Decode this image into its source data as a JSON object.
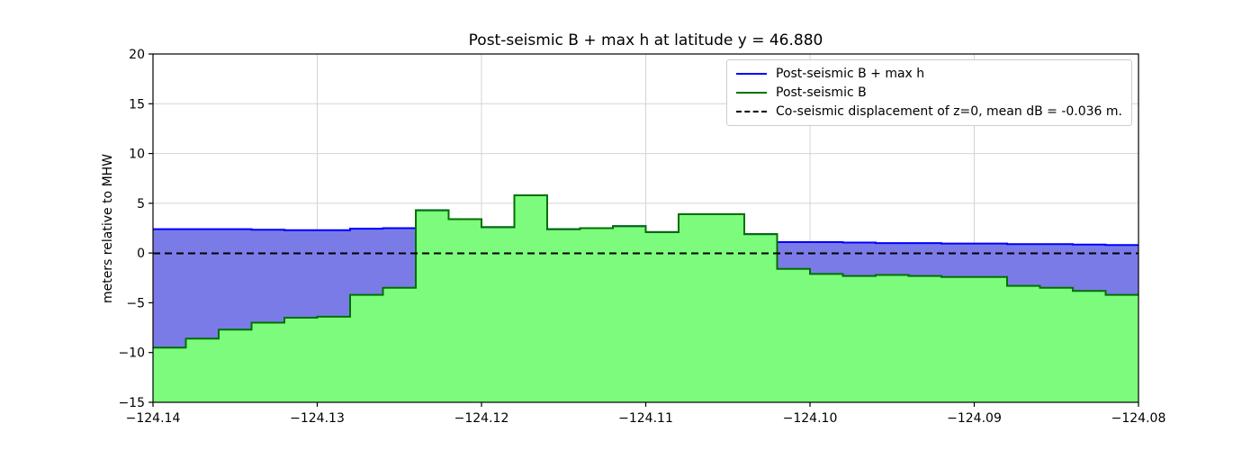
{
  "chart_data": {
    "type": "area",
    "title": "Post-seismic B + max h at latitude y = 46.880",
    "ylabel": "meters relative to MHW",
    "xlabel": "",
    "xlim": [
      -124.14,
      -124.08
    ],
    "ylim": [
      -15,
      20
    ],
    "x_ticks": [
      -124.14,
      -124.13,
      -124.12,
      -124.11,
      -124.1,
      -124.09,
      -124.08
    ],
    "y_ticks": [
      -15,
      -10,
      -5,
      0,
      5,
      10,
      15,
      20
    ],
    "grid": true,
    "legend_position": "upper right",
    "colors": {
      "grid": "#d4d4d4",
      "spine": "#000000",
      "background": "#ffffff"
    },
    "x_edges": [
      -124.14,
      -124.138,
      -124.136,
      -124.134,
      -124.132,
      -124.13,
      -124.128,
      -124.126,
      -124.124,
      -124.122,
      -124.12,
      -124.118,
      -124.116,
      -124.114,
      -124.112,
      -124.11,
      -124.108,
      -124.106,
      -124.104,
      -124.102,
      -124.1,
      -124.098,
      -124.096,
      -124.094,
      -124.092,
      -124.09,
      -124.088,
      -124.086,
      -124.084,
      -124.082,
      -124.08
    ],
    "series": [
      {
        "name": "Post-seismic B + max h",
        "color": "#0000ff",
        "fill": "#7b7be8",
        "values": [
          2.4,
          2.4,
          2.4,
          2.35,
          2.3,
          2.3,
          2.45,
          2.5,
          4.3,
          3.4,
          2.6,
          5.8,
          2.4,
          2.5,
          2.7,
          2.1,
          3.9,
          3.9,
          1.9,
          1.1,
          1.1,
          1.05,
          1.0,
          1.0,
          0.95,
          0.95,
          0.9,
          0.9,
          0.85,
          0.8
        ]
      },
      {
        "name": "Post-seismic B",
        "color": "#007000",
        "fill": "#7dfb7d",
        "values": [
          -9.5,
          -8.6,
          -7.7,
          -7.0,
          -6.5,
          -6.4,
          -4.2,
          -3.5,
          4.3,
          3.4,
          2.6,
          5.8,
          2.4,
          2.5,
          2.7,
          2.1,
          3.9,
          3.9,
          1.9,
          -1.6,
          -2.1,
          -2.3,
          -2.2,
          -2.3,
          -2.4,
          -2.4,
          -3.3,
          -3.5,
          -3.8,
          -4.2
        ]
      }
    ],
    "dashed_line": {
      "label": "Co-seismic displacement of z=0, mean dB = -0.036 m.",
      "y": -0.036,
      "color": "#000000"
    }
  }
}
